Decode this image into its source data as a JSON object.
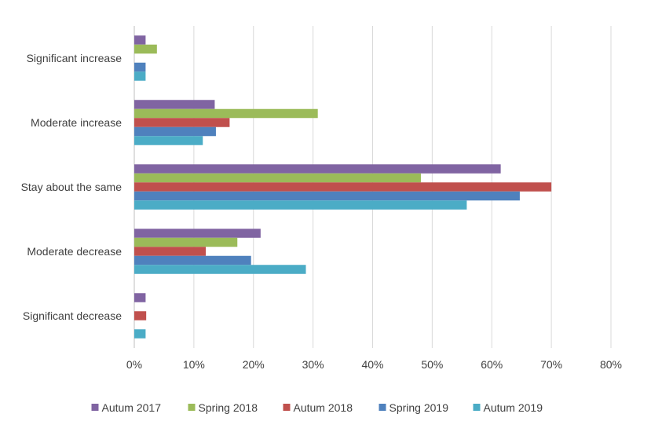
{
  "chart_data": {
    "type": "bar",
    "orientation": "horizontal",
    "title": "",
    "xlabel": "",
    "ylabel": "",
    "xlim": [
      0,
      80
    ],
    "x_ticks": [
      "0%",
      "10%",
      "20%",
      "30%",
      "40%",
      "50%",
      "60%",
      "70%",
      "80%"
    ],
    "grid": "vertical",
    "legend_position": "bottom",
    "categories": [
      "Significant increase",
      "Moderate increase",
      "Stay about the same",
      "Moderate decrease",
      "Significant decrease"
    ],
    "series": [
      {
        "name": "Autum 2017",
        "color": "#8064A2",
        "values": [
          1.9,
          13.5,
          61.5,
          21.2,
          1.9
        ]
      },
      {
        "name": "Spring 2018",
        "color": "#9BBB59",
        "values": [
          3.8,
          30.8,
          48.1,
          17.3,
          0
        ]
      },
      {
        "name": "Autum 2018",
        "color": "#C0504D",
        "values": [
          0,
          16.0,
          70.0,
          12.0,
          2.0
        ]
      },
      {
        "name": "Spring 2019",
        "color": "#4F81BD",
        "values": [
          1.9,
          13.7,
          64.7,
          19.6,
          0
        ]
      },
      {
        "name": "Autum 2019",
        "color": "#4BACC6",
        "values": [
          1.9,
          11.5,
          55.8,
          28.8,
          1.9
        ]
      }
    ]
  }
}
